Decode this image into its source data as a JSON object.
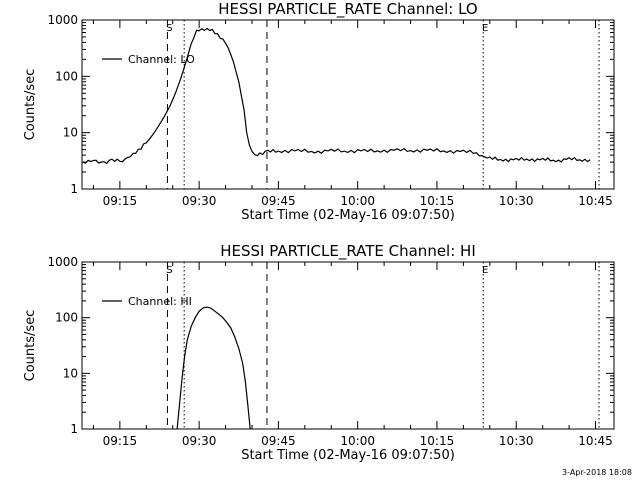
{
  "footer_timestamp": "3-Apr-2018 18:08",
  "chart_data": [
    {
      "type": "line",
      "title": "HESSI PARTICLE_RATE Channel: LO",
      "xlabel": "Start Time (02-May-16 09:07:50)",
      "ylabel": "Counts/sec",
      "yscale": "log",
      "ylim": [
        1,
        1000
      ],
      "xlim": [
        "09:07:50",
        "10:48:30"
      ],
      "yticks": [
        1,
        10,
        100,
        1000
      ],
      "ytick_labels": [
        "1",
        "10",
        "100",
        "1000"
      ],
      "xticks": [
        "09:15",
        "09:30",
        "09:45",
        "10:00",
        "10:15",
        "10:30",
        "10:45"
      ],
      "legend": {
        "label": "Channel: LO",
        "position": "top-left"
      },
      "markers": [
        {
          "label": "S",
          "time": "09:24:00",
          "style": "dashed"
        },
        {
          "label": "",
          "time": "09:27:10",
          "style": "dotted"
        },
        {
          "label": "",
          "time": "09:42:50",
          "style": "dashed"
        },
        {
          "label": "E",
          "time": "10:23:45",
          "style": "dotted"
        },
        {
          "label": "",
          "time": "10:45:40",
          "style": "dotted"
        }
      ],
      "series": [
        {
          "name": "Channel: LO",
          "points": [
            [
              "09:08:00",
              3.0
            ],
            [
              "09:09:00",
              3.1
            ],
            [
              "09:10:30",
              3.0
            ],
            [
              "09:12:00",
              3.0
            ],
            [
              "09:13:30",
              3.2
            ],
            [
              "09:15:00",
              3.1
            ],
            [
              "09:16:30",
              3.5
            ],
            [
              "09:17:30",
              4.0
            ],
            [
              "09:18:30",
              5.0
            ],
            [
              "09:19:30",
              6.0
            ],
            [
              "09:20:30",
              7.5
            ],
            [
              "09:21:30",
              10
            ],
            [
              "09:22:30",
              14
            ],
            [
              "09:23:30",
              20
            ],
            [
              "09:24:30",
              30
            ],
            [
              "09:25:30",
              50
            ],
            [
              "09:26:30",
              90
            ],
            [
              "09:27:30",
              180
            ],
            [
              "09:28:30",
              380
            ],
            [
              "09:29:30",
              620
            ],
            [
              "09:30:30",
              700
            ],
            [
              "09:31:30",
              680
            ],
            [
              "09:32:30",
              630
            ],
            [
              "09:33:30",
              560
            ],
            [
              "09:34:30",
              460
            ],
            [
              "09:35:30",
              320
            ],
            [
              "09:36:30",
              180
            ],
            [
              "09:37:30",
              80
            ],
            [
              "09:38:30",
              25
            ],
            [
              "09:39:00",
              10
            ],
            [
              "09:39:30",
              6
            ],
            [
              "09:40:00",
              4.5
            ],
            [
              "09:40:30",
              3.8
            ],
            [
              "09:41:30",
              4.3
            ],
            [
              "09:43:00",
              4.6
            ],
            [
              "09:45:00",
              4.7
            ],
            [
              "09:47:30",
              4.8
            ],
            [
              "09:50:00",
              4.7
            ],
            [
              "09:52:30",
              4.6
            ],
            [
              "09:55:00",
              4.8
            ],
            [
              "09:57:30",
              4.7
            ],
            [
              "10:00:00",
              4.8
            ],
            [
              "10:02:30",
              4.7
            ],
            [
              "10:05:00",
              4.8
            ],
            [
              "10:07:30",
              4.9
            ],
            [
              "10:10:00",
              4.8
            ],
            [
              "10:12:30",
              4.9
            ],
            [
              "10:15:00",
              4.8
            ],
            [
              "10:17:30",
              4.7
            ],
            [
              "10:20:00",
              4.6
            ],
            [
              "10:22:30",
              4.4
            ],
            [
              "10:24:00",
              3.6
            ],
            [
              "10:26:00",
              3.4
            ],
            [
              "10:28:00",
              3.3
            ],
            [
              "10:30:00",
              3.3
            ],
            [
              "10:32:00",
              3.4
            ],
            [
              "10:34:00",
              3.3
            ],
            [
              "10:36:00",
              3.3
            ],
            [
              "10:38:00",
              3.2
            ],
            [
              "10:40:00",
              3.4
            ],
            [
              "10:42:00",
              3.3
            ],
            [
              "10:44:00",
              3.3
            ]
          ]
        }
      ]
    },
    {
      "type": "line",
      "title": "HESSI PARTICLE_RATE Channel: HI",
      "xlabel": "Start Time (02-May-16 09:07:50)",
      "ylabel": "Counts/sec",
      "yscale": "log",
      "ylim": [
        1,
        1000
      ],
      "xlim": [
        "09:07:50",
        "10:48:30"
      ],
      "yticks": [
        1,
        10,
        100,
        1000
      ],
      "ytick_labels": [
        "1",
        "10",
        "100",
        "1000"
      ],
      "xticks": [
        "09:15",
        "09:30",
        "09:45",
        "10:00",
        "10:15",
        "10:30",
        "10:45"
      ],
      "legend": {
        "label": "Channel: HI",
        "position": "top-left"
      },
      "markers": [
        {
          "label": "S",
          "time": "09:24:00",
          "style": "dashed"
        },
        {
          "label": "",
          "time": "09:27:10",
          "style": "dotted"
        },
        {
          "label": "",
          "time": "09:42:50",
          "style": "dashed"
        },
        {
          "label": "E",
          "time": "10:23:45",
          "style": "dotted"
        },
        {
          "label": "",
          "time": "10:45:40",
          "style": "dotted"
        }
      ],
      "series": [
        {
          "name": "Channel: HI",
          "points": [
            [
              "09:25:50",
              1.0
            ],
            [
              "09:26:15",
              2.5
            ],
            [
              "09:26:45",
              8
            ],
            [
              "09:27:15",
              20
            ],
            [
              "09:27:45",
              40
            ],
            [
              "09:28:30",
              70
            ],
            [
              "09:29:15",
              100
            ],
            [
              "09:30:00",
              130
            ],
            [
              "09:30:45",
              150
            ],
            [
              "09:31:30",
              155
            ],
            [
              "09:32:15",
              148
            ],
            [
              "09:33:00",
              130
            ],
            [
              "09:33:45",
              115
            ],
            [
              "09:34:30",
              100
            ],
            [
              "09:35:15",
              82
            ],
            [
              "09:36:00",
              65
            ],
            [
              "09:36:45",
              45
            ],
            [
              "09:37:30",
              28
            ],
            [
              "09:38:15",
              15
            ],
            [
              "09:38:45",
              7
            ],
            [
              "09:39:15",
              2.5
            ],
            [
              "09:39:40",
              1.0
            ]
          ]
        }
      ]
    }
  ]
}
